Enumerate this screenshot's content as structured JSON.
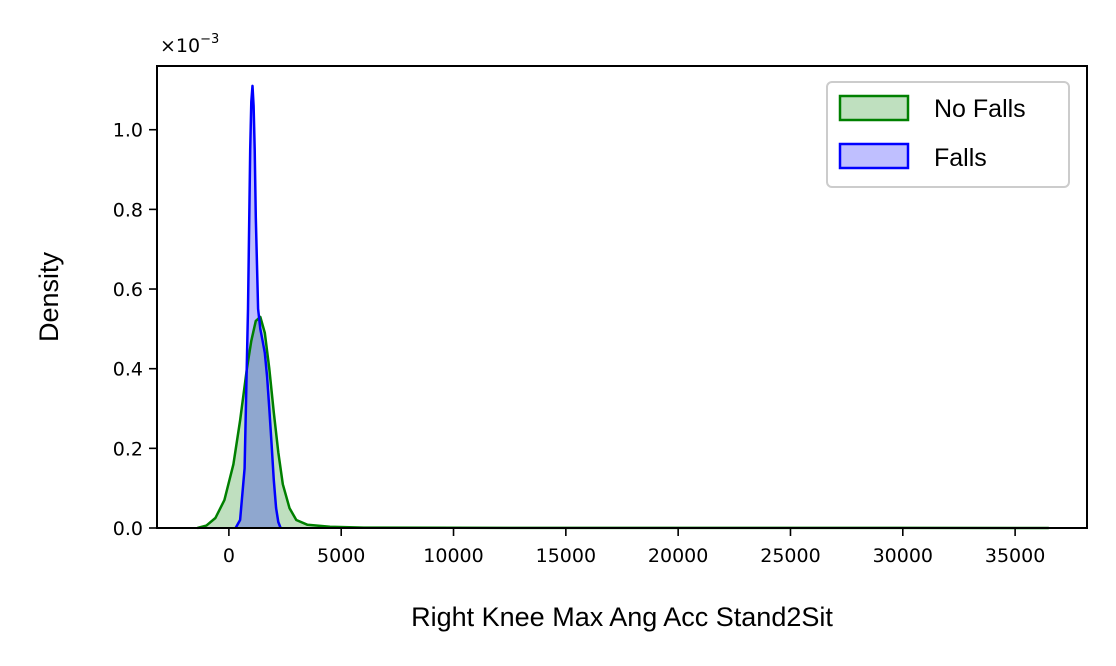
{
  "chart_data": {
    "type": "area",
    "title": "",
    "xlabel": "Right Knee Max Ang Acc Stand2Sit",
    "ylabel": "Density",
    "y_scale_text": "×10",
    "y_scale_exponent": "−3",
    "xlim": [
      -3200,
      38200
    ],
    "ylim": [
      0,
      1.16
    ],
    "x_ticks": [
      0,
      5000,
      10000,
      15000,
      20000,
      25000,
      30000,
      35000
    ],
    "x_tick_labels": [
      "0",
      "5000",
      "10000",
      "15000",
      "20000",
      "25000",
      "30000",
      "35000"
    ],
    "y_ticks": [
      0,
      0.2,
      0.4,
      0.6,
      0.8,
      1.0
    ],
    "y_tick_labels": [
      "0.0",
      "0.2",
      "0.4",
      "0.6",
      "0.8",
      "1.0"
    ],
    "grid": false,
    "legend_position": "top-right",
    "series": [
      {
        "name": "No Falls",
        "color": "#008000",
        "fill": "#bfe0bf",
        "x": [
          -1400,
          -1000,
          -600,
          -200,
          200,
          500,
          800,
          1000,
          1200,
          1400,
          1600,
          1800,
          2000,
          2200,
          2400,
          2700,
          3000,
          3500,
          4500,
          6000,
          10000,
          20000,
          30000,
          36500
        ],
        "y": [
          0,
          0.006,
          0.025,
          0.07,
          0.16,
          0.27,
          0.4,
          0.47,
          0.52,
          0.53,
          0.49,
          0.4,
          0.29,
          0.19,
          0.11,
          0.05,
          0.02,
          0.008,
          0.003,
          0.001,
          0.0005,
          0.0003,
          0.0002,
          0
        ]
      },
      {
        "name": "Falls",
        "color": "#0000ff",
        "fill": "#bfbfff",
        "x": [
          300,
          500,
          700,
          850,
          950,
          1000,
          1050,
          1100,
          1150,
          1200,
          1300,
          1400,
          1500,
          1600,
          1700,
          1800,
          1900,
          2000,
          2100,
          2200,
          2300
        ],
        "y": [
          0,
          0.02,
          0.15,
          0.55,
          0.95,
          1.07,
          1.11,
          1.06,
          0.95,
          0.78,
          0.55,
          0.5,
          0.47,
          0.44,
          0.38,
          0.3,
          0.21,
          0.12,
          0.05,
          0.015,
          0
        ]
      }
    ]
  }
}
